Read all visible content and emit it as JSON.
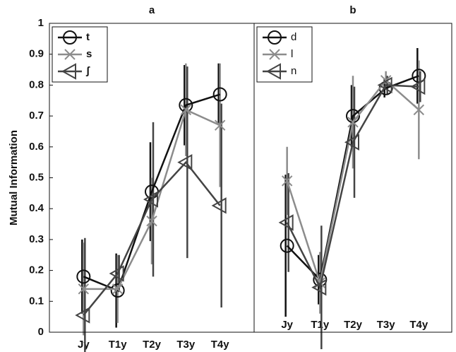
{
  "chart_data": [
    {
      "type": "line",
      "title": "a",
      "ylabel": "Mutual Information",
      "categories": [
        "Jy",
        "T1y",
        "T2y",
        "T3y",
        "T4y"
      ],
      "ylim": [
        0,
        1
      ],
      "yticks": [
        0,
        0.1,
        0.2,
        0.3,
        0.4,
        0.5,
        0.6,
        0.7,
        0.8,
        0.9,
        1
      ],
      "legend": "upper left",
      "series": [
        {
          "name": "t",
          "color": "#111111",
          "marker": "o",
          "values": [
            0.18,
            0.135,
            0.455,
            0.735,
            0.77
          ],
          "errors": [
            0.12,
            0.12,
            0.16,
            0.13,
            0.1
          ]
        },
        {
          "name": "s",
          "color": "#8c8c8c",
          "marker": "x",
          "values": [
            0.14,
            0.14,
            0.36,
            0.72,
            0.67
          ],
          "errors": [
            0.15,
            0.11,
            0.14,
            0.15,
            0.2
          ]
        },
        {
          "name": "ʃ",
          "color": "#444444",
          "marker": "<",
          "values": [
            0.055,
            0.19,
            0.43,
            0.55,
            0.41
          ],
          "errors": [
            0.25,
            0.06,
            0.25,
            0.31,
            0.33
          ]
        }
      ]
    },
    {
      "type": "line",
      "title": "b",
      "categories": [
        "Jy",
        "T1y",
        "T2y",
        "T3y",
        "T4y"
      ],
      "ylim": [
        0,
        1
      ],
      "legend": "upper left",
      "series": [
        {
          "name": "d",
          "color": "#111111",
          "marker": "o",
          "values": [
            0.28,
            0.17,
            0.7,
            0.79,
            0.83
          ],
          "errors": [
            0.23,
            0.08,
            0.1,
            0.03,
            0.09
          ]
        },
        {
          "name": "l",
          "color": "#8c8c8c",
          "marker": "x",
          "values": [
            0.49,
            0.16,
            0.68,
            0.815,
            0.72
          ],
          "errors": [
            0.11,
            0.1,
            0.15,
            0.03,
            0.16
          ]
        },
        {
          "name": "n",
          "color": "#444444",
          "marker": "<",
          "values": [
            0.355,
            0.145,
            0.615,
            0.8,
            0.795
          ],
          "errors": [
            0.16,
            0.2,
            0.18,
            0.03,
            0.05
          ]
        }
      ]
    }
  ]
}
